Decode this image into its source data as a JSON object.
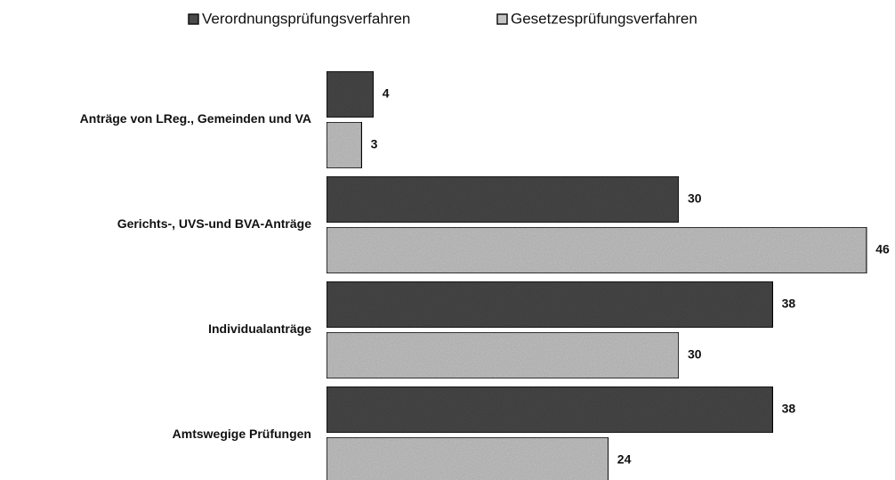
{
  "chart_data": {
    "type": "hbar",
    "categories": [
      "Anträge von LReg., Gemeinden und VA",
      "Gerichts-, UVS-und BVA-Anträge",
      "Individualanträge",
      "Amtswegige Prüfungen"
    ],
    "series": [
      {
        "name": "Verordnungsprüfungsverfahren",
        "color": "#4a4a4a",
        "values": [
          4,
          30,
          38,
          38
        ]
      },
      {
        "name": "Gesetzesprüfungsverfahren",
        "color": "#c4c4c4",
        "values": [
          3,
          46,
          30,
          24
        ]
      }
    ]
  }
}
